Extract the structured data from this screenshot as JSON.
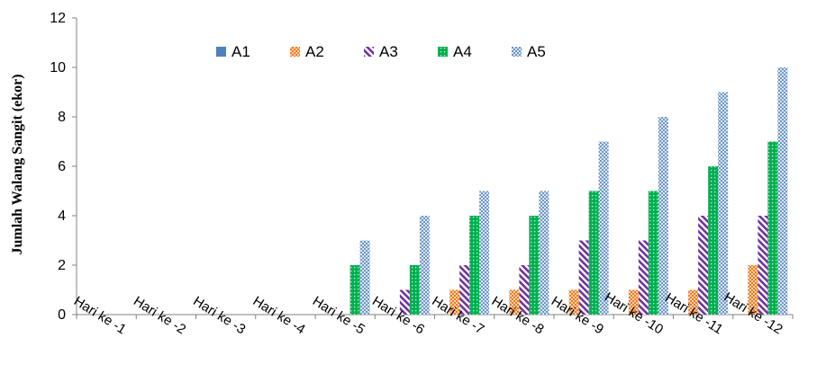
{
  "chart_data": {
    "type": "bar",
    "title": "",
    "xlabel": "",
    "ylabel": "Jumlah Walang Sangit (ekor)",
    "ylim": [
      0,
      12
    ],
    "yticks": [
      0,
      2,
      4,
      6,
      8,
      10,
      12
    ],
    "grid": false,
    "legend_position": "top",
    "categories": [
      "Hari ke -1",
      "Hari ke -2",
      "Hari ke -3",
      "Hari ke -4",
      "Hari ke -5",
      "Hari ke -6",
      "Hari ke -7",
      "Hari ke -8",
      "Hari ke -9",
      "Hari ke -10",
      "Hari ke -11",
      "Hari ke -12"
    ],
    "series": [
      {
        "name": "A1",
        "color": "#4f81bd",
        "pattern": "solid",
        "values": [
          0,
          0,
          0,
          0,
          0,
          0,
          0,
          0,
          0,
          0,
          0,
          0
        ]
      },
      {
        "name": "A2",
        "color": "#f79646",
        "pattern": "checker",
        "values": [
          0,
          0,
          0,
          0,
          0,
          0,
          1,
          1,
          1,
          1,
          1,
          2
        ]
      },
      {
        "name": "A3",
        "color": "#7030a0",
        "pattern": "diagonal",
        "values": [
          0,
          0,
          0,
          0,
          0,
          1,
          2,
          2,
          3,
          3,
          4,
          4
        ]
      },
      {
        "name": "A4",
        "color": "#00b050",
        "pattern": "dots",
        "values": [
          0,
          0,
          0,
          0,
          2,
          2,
          4,
          4,
          5,
          5,
          6,
          7
        ]
      },
      {
        "name": "A5",
        "color": "#95b3d7",
        "pattern": "crosshatch",
        "values": [
          0,
          0,
          0,
          0,
          3,
          4,
          5,
          5,
          7,
          8,
          9,
          10
        ]
      }
    ]
  }
}
